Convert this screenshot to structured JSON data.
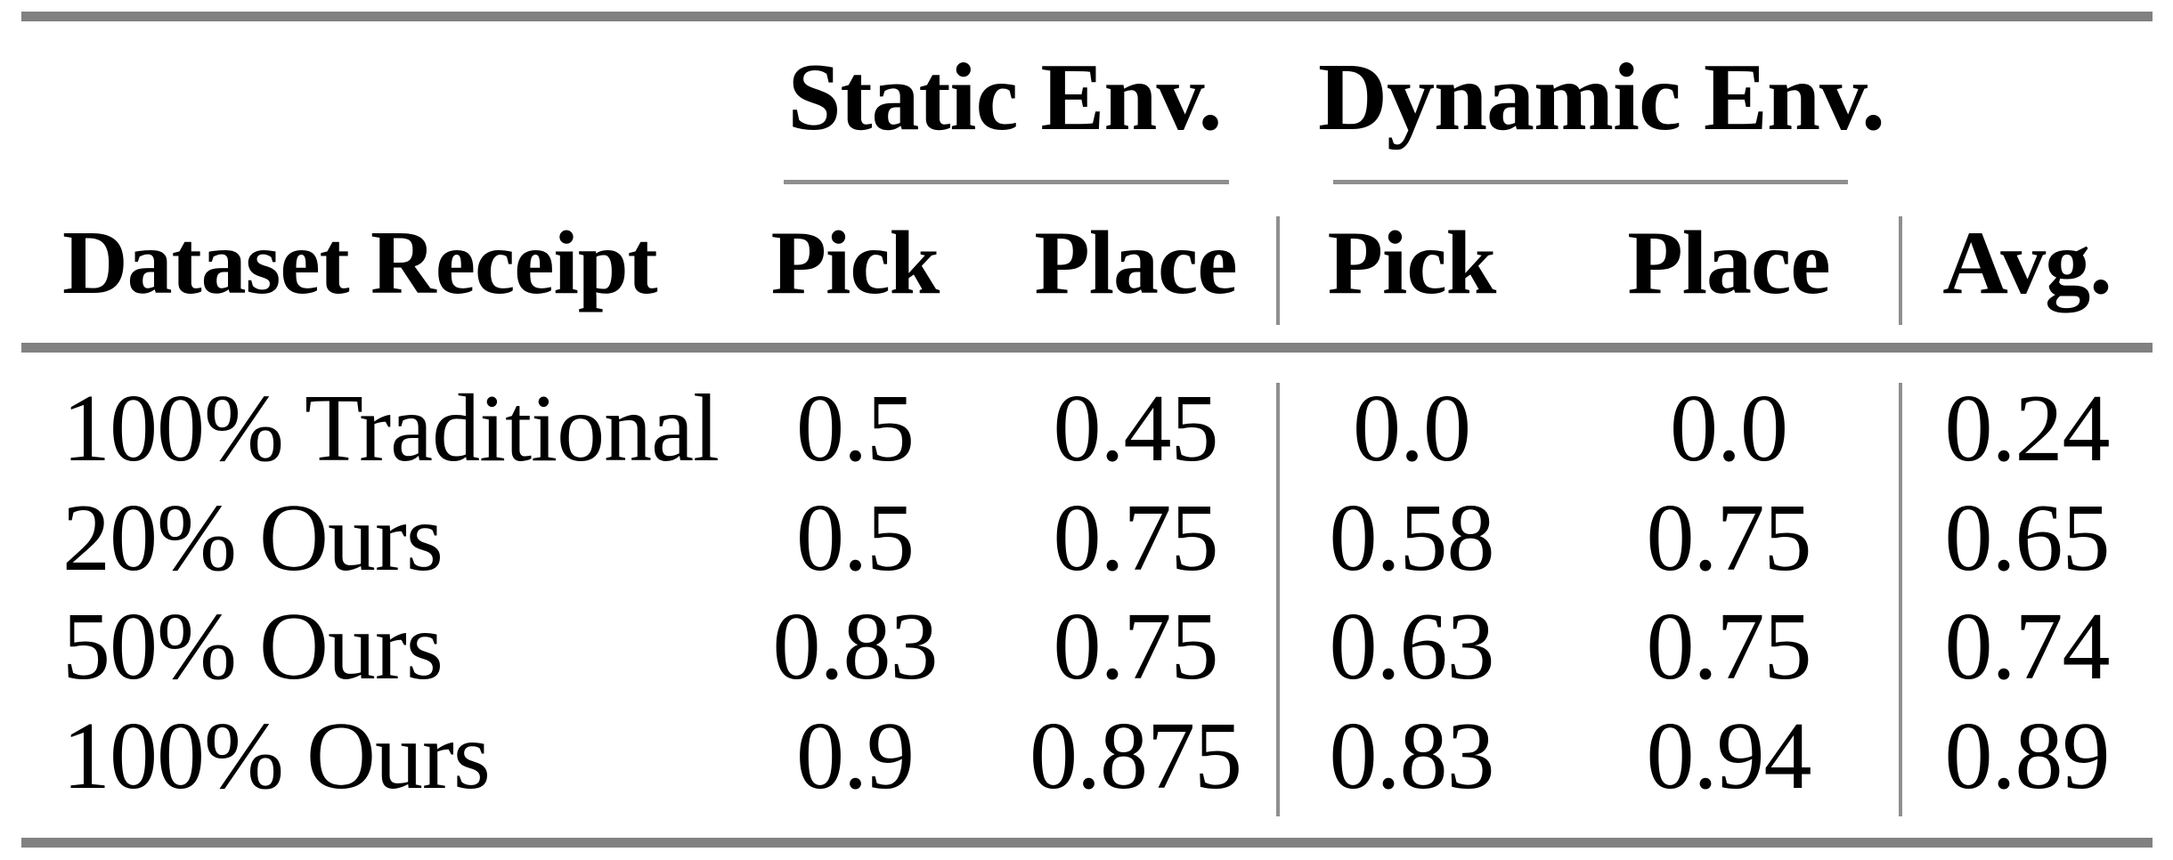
{
  "table": {
    "group_headers": [
      {
        "label": "Static Env."
      },
      {
        "label": "Dynamic Env."
      }
    ],
    "column_headers": {
      "dataset": "Dataset Receipt",
      "static_pick": "Pick",
      "static_place": "Place",
      "dynamic_pick": "Pick",
      "dynamic_place": "Place",
      "avg": "Avg."
    },
    "rows": [
      {
        "label": "100% Traditional",
        "static_pick": "0.5",
        "static_place": "0.45",
        "dynamic_pick": "0.0",
        "dynamic_place": "0.0",
        "avg": "0.24"
      },
      {
        "label": "20% Ours",
        "static_pick": "0.5",
        "static_place": "0.75",
        "dynamic_pick": "0.58",
        "dynamic_place": "0.75",
        "avg": "0.65"
      },
      {
        "label": "50% Ours",
        "static_pick": "0.83",
        "static_place": "0.75",
        "dynamic_pick": "0.63",
        "dynamic_place": "0.75",
        "avg": "0.74"
      },
      {
        "label": "100% Ours",
        "static_pick": "0.9",
        "static_place": "0.875",
        "dynamic_pick": "0.83",
        "dynamic_place": "0.94",
        "avg": "0.89"
      }
    ]
  },
  "colors": {
    "thick_rule": "#818181",
    "thin_rule": "#8f8f8f",
    "text": "#000000",
    "background": "#ffffff"
  },
  "chart_data": {
    "type": "table",
    "columns": [
      "Dataset Receipt",
      "Static Env. Pick",
      "Static Env. Place",
      "Dynamic Env. Pick",
      "Dynamic Env. Place",
      "Avg."
    ],
    "rows": [
      [
        "100% Traditional",
        0.5,
        0.45,
        0.0,
        0.0,
        0.24
      ],
      [
        "20% Ours",
        0.5,
        0.75,
        0.58,
        0.75,
        0.65
      ],
      [
        "50% Ours",
        0.83,
        0.75,
        0.63,
        0.75,
        0.74
      ],
      [
        "100% Ours",
        0.9,
        0.875,
        0.83,
        0.94,
        0.89
      ]
    ]
  }
}
